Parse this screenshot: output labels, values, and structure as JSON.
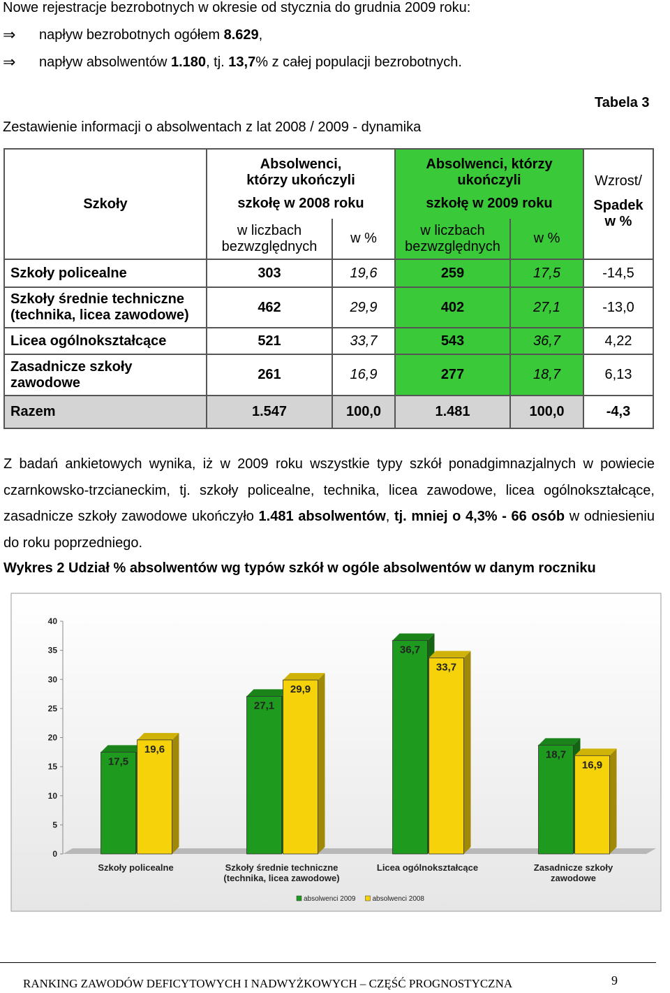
{
  "intro": {
    "lead": "Nowe rejestracje bezrobotnych w okresie od stycznia do grudnia 2009 roku:",
    "bullets": [
      [
        {
          "text": "napływ bezrobotnych ogółem ",
          "bold": false
        },
        {
          "text": "8.629",
          "bold": true
        },
        {
          "text": ",",
          "bold": false
        }
      ],
      [
        {
          "text": "napływ absolwentów ",
          "bold": false
        },
        {
          "text": "1.180",
          "bold": true
        },
        {
          "text": ", tj. ",
          "bold": false
        },
        {
          "text": "13,7",
          "bold": true
        },
        {
          "text": "% z całej populacji bezrobotnych.",
          "bold": false
        }
      ]
    ]
  },
  "table": {
    "caption": "Tabela 3",
    "title": "Zestawienie informacji o absolwentach z lat 2008 / 2009 - dynamika",
    "header": {
      "schools": "Szkoły",
      "group2008": [
        "Absolwenci, którzy ukończyli",
        "szkołę w 2008 roku"
      ],
      "group2009": [
        "Absolwenci, którzy ukończyli",
        "szkołę w 2009 roku"
      ],
      "absolute": "w liczbach bezwzględnych",
      "percent": "w %",
      "change": [
        "Wzrost/",
        "Spadek w %"
      ]
    },
    "rows": [
      [
        "Szkoły policealne",
        "303",
        "19,6",
        "259",
        "17,5",
        "-14,5"
      ],
      [
        "Szkoły średnie techniczne (technika, licea zawodowe)",
        "462",
        "29,9",
        "402",
        "27,1",
        "-13,0"
      ],
      [
        "Licea ogólnokształcące",
        "521",
        "33,7",
        "543",
        "36,7",
        "4,22"
      ],
      [
        "Zasadnicze szkoły zawodowe",
        "261",
        "16,9",
        "277",
        "18,7",
        "6,13"
      ]
    ],
    "total": [
      "Razem",
      "1.547",
      "100,0",
      "1.481",
      "100,0",
      "-4,3"
    ]
  },
  "paragraph": [
    {
      "text": "Z badań ankietowych wynika, iż w 2009 roku wszystkie typy szkół ponadgimnazjalnych w powiecie czarnkowsko-trzcianeckim, tj. szkoły policealne, technika, licea zawodowe, licea ogólnokształcące, zasadnicze szkoły zawodowe ukończyło ",
      "bold": false
    },
    {
      "text": "1.481 absolwentów",
      "bold": true
    },
    {
      "text": ", ",
      "bold": false
    },
    {
      "text": "tj. mniej o 4,3% - 66 osób",
      "bold": true
    },
    {
      "text": " w odniesieniu do roku poprzedniego.",
      "bold": false
    }
  ],
  "chart_title": "Wykres 2  Udział % absolwentów wg typów szkół w ogóle absolwentów w danym roczniku",
  "chart_data": {
    "type": "bar",
    "categories": [
      "Szkoły policealne",
      "Szkoły średnie techniczne (technika, licea zawodowe)",
      "Licea ogólnokształcące",
      "Zasadnicze szkoły zawodowe"
    ],
    "series": [
      {
        "name": "absolwenci 2009",
        "color": "#1e9a1e",
        "values": [
          17.5,
          27.1,
          36.7,
          18.7
        ],
        "value_labels": [
          "17,5",
          "27,1",
          "36,7",
          "18,7"
        ]
      },
      {
        "name": "absolwenci 2008",
        "color": "#f5d20a",
        "values": [
          19.6,
          29.9,
          33.7,
          16.9
        ],
        "value_labels": [
          "19,6",
          "29,9",
          "33,7",
          "16,9"
        ]
      }
    ],
    "ylim": [
      0,
      40
    ],
    "yticks": [
      0,
      5,
      10,
      15,
      20,
      25,
      30,
      35,
      40
    ],
    "grid": false,
    "legend": "bottom"
  },
  "footer": {
    "text": "RANKING ZAWODÓW DEFICYTOWYCH I NADWYŻKOWYCH – CZĘŚĆ PROGNOSTYCZNA",
    "page": "9"
  }
}
